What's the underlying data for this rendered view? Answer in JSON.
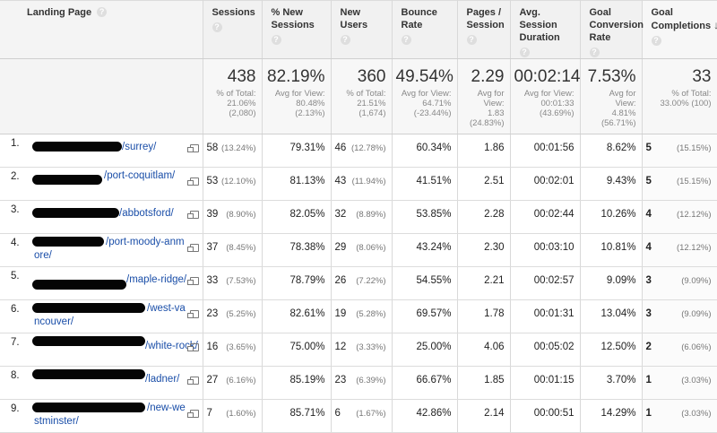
{
  "header": {
    "landing_page": "Landing Page",
    "sessions": "Sessions",
    "new_sessions": "% New Sessions",
    "new_users": "New Users",
    "bounce_rate": "Bounce Rate",
    "pages_session": "Pages / Session",
    "avg_session_duration": "Avg. Session Duration",
    "goal_conversion_rate": "Goal Conversion Rate",
    "goal_completions": "Goal Completions",
    "help_glyph": "?",
    "sort_glyph": "↓"
  },
  "totals": {
    "sessions": {
      "value": "438",
      "line1": "% of Total:",
      "line2": "21.06%",
      "line3": "(2,080)"
    },
    "new_sessions": {
      "value": "82.19%",
      "line1": "Avg for View:",
      "line2": "80.48%",
      "line3": "(2.13%)"
    },
    "new_users": {
      "value": "360",
      "line1": "% of Total:",
      "line2": "21.51%",
      "line3": "(1,674)"
    },
    "bounce_rate": {
      "value": "49.54%",
      "line1": "Avg for View:",
      "line2": "64.71%",
      "line3": "(-23.44%)"
    },
    "pages_session": {
      "value": "2.29",
      "line1": "Avg for",
      "line2": "View:",
      "line3": "1.83",
      "line4": "(24.83%)"
    },
    "avg_session_duration": {
      "value": "00:02:14",
      "line1": "Avg for View:",
      "line2": "00:01:33",
      "line3": "(43.69%)"
    },
    "goal_conversion_rate": {
      "value": "7.53%",
      "line1": "Avg for",
      "line2": "View:",
      "line3": "4.81%",
      "line4": "(56.71%)"
    },
    "goal_completions": {
      "value": "33",
      "line1": "% of Total:",
      "line2": "33.00% (100)"
    }
  },
  "rows": [
    {
      "num": "1.",
      "url": "/surrey/",
      "sessions": "58",
      "sessions_pct": "(13.24%)",
      "new_sessions": "79.31%",
      "new_users": "46",
      "new_users_pct": "(12.78%)",
      "bounce_rate": "60.34%",
      "pages_session": "1.86",
      "duration": "00:01:56",
      "conversion": "8.62%",
      "completions": "5",
      "completions_pct": "(15.15%)"
    },
    {
      "num": "2.",
      "url": "/port-coquitlam/",
      "sessions": "53",
      "sessions_pct": "(12.10%)",
      "new_sessions": "81.13%",
      "new_users": "43",
      "new_users_pct": "(11.94%)",
      "bounce_rate": "41.51%",
      "pages_session": "2.51",
      "duration": "00:02:01",
      "conversion": "9.43%",
      "completions": "5",
      "completions_pct": "(15.15%)"
    },
    {
      "num": "3.",
      "url": "/abbotsford/",
      "sessions": "39",
      "sessions_pct": "(8.90%)",
      "new_sessions": "82.05%",
      "new_users": "32",
      "new_users_pct": "(8.89%)",
      "bounce_rate": "53.85%",
      "pages_session": "2.28",
      "duration": "00:02:44",
      "conversion": "10.26%",
      "completions": "4",
      "completions_pct": "(12.12%)"
    },
    {
      "num": "4.",
      "url": "/port-moody-anmore/",
      "sessions": "37",
      "sessions_pct": "(8.45%)",
      "new_sessions": "78.38%",
      "new_users": "29",
      "new_users_pct": "(8.06%)",
      "bounce_rate": "43.24%",
      "pages_session": "2.30",
      "duration": "00:03:10",
      "conversion": "10.81%",
      "completions": "4",
      "completions_pct": "(12.12%)"
    },
    {
      "num": "5.",
      "url": "/maple-ridge/",
      "sessions": "33",
      "sessions_pct": "(7.53%)",
      "new_sessions": "78.79%",
      "new_users": "26",
      "new_users_pct": "(7.22%)",
      "bounce_rate": "54.55%",
      "pages_session": "2.21",
      "duration": "00:02:57",
      "conversion": "9.09%",
      "completions": "3",
      "completions_pct": "(9.09%)"
    },
    {
      "num": "6.",
      "url": "/west-vancouver/",
      "sessions": "23",
      "sessions_pct": "(5.25%)",
      "new_sessions": "82.61%",
      "new_users": "19",
      "new_users_pct": "(5.28%)",
      "bounce_rate": "69.57%",
      "pages_session": "1.78",
      "duration": "00:01:31",
      "conversion": "13.04%",
      "completions": "3",
      "completions_pct": "(9.09%)"
    },
    {
      "num": "7.",
      "url": "/white-rock/",
      "sessions": "16",
      "sessions_pct": "(3.65%)",
      "new_sessions": "75.00%",
      "new_users": "12",
      "new_users_pct": "(3.33%)",
      "bounce_rate": "25.00%",
      "pages_session": "4.06",
      "duration": "00:05:02",
      "conversion": "12.50%",
      "completions": "2",
      "completions_pct": "(6.06%)"
    },
    {
      "num": "8.",
      "url": "/ladner/",
      "sessions": "27",
      "sessions_pct": "(6.16%)",
      "new_sessions": "85.19%",
      "new_users": "23",
      "new_users_pct": "(6.39%)",
      "bounce_rate": "66.67%",
      "pages_session": "1.85",
      "duration": "00:01:15",
      "conversion": "3.70%",
      "completions": "1",
      "completions_pct": "(3.03%)"
    },
    {
      "num": "9.",
      "url": "/new-westminster/",
      "sessions": "7",
      "sessions_pct": "(1.60%)",
      "new_sessions": "85.71%",
      "new_users": "6",
      "new_users_pct": "(1.67%)",
      "bounce_rate": "42.86%",
      "pages_session": "2.14",
      "duration": "00:00:51",
      "conversion": "14.29%",
      "completions": "1",
      "completions_pct": "(3.03%)"
    }
  ],
  "colors": {
    "link": "#1a4ea8",
    "header_bg": "#f1f1f1",
    "totals_bg": "#f7f7f7",
    "redaction": "#050505"
  }
}
